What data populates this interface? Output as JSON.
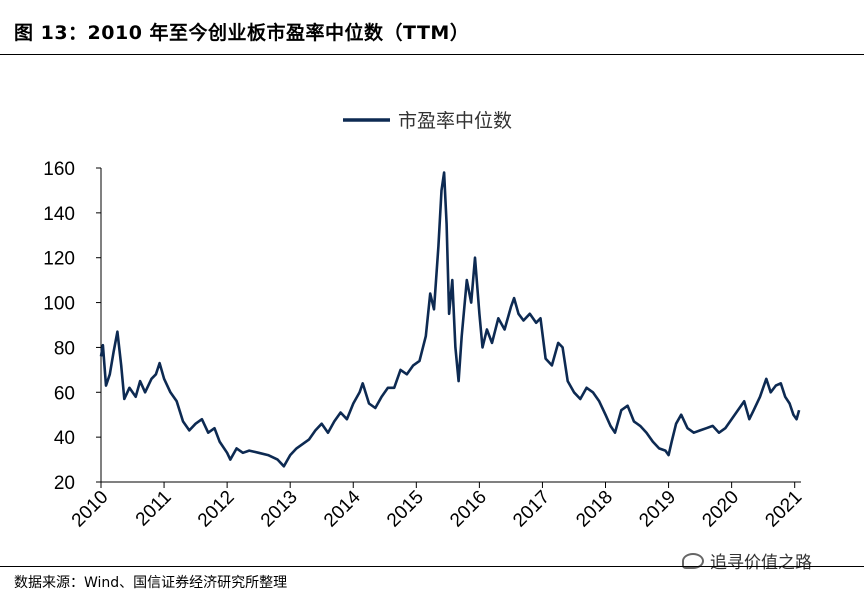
{
  "header": {
    "title": "图 13：2010 年至今创业板市盈率中位数（TTM）"
  },
  "footer": {
    "source": "数据来源：Wind、国信证券经济研究所整理"
  },
  "watermark": {
    "text": "追寻价值之路"
  },
  "colors": {
    "line": "#0d2a52",
    "axis": "#000000"
  },
  "chart_data": {
    "type": "line",
    "title": "",
    "legend": {
      "position": "top-center"
    },
    "x_ticks": [
      "2010",
      "2011",
      "2012",
      "2013",
      "2014",
      "2015",
      "2016",
      "2017",
      "2018",
      "2019",
      "2020",
      "2021"
    ],
    "y_ticks": [
      "20",
      "40",
      "60",
      "80",
      "100",
      "120",
      "140",
      "160"
    ],
    "ylim": [
      20,
      160
    ],
    "xlim": [
      2010.0,
      2021.1
    ],
    "grid": false,
    "series": [
      {
        "name": "市盈率中位数",
        "points": [
          [
            2010.0,
            76
          ],
          [
            2010.03,
            81
          ],
          [
            2010.08,
            63
          ],
          [
            2010.14,
            68
          ],
          [
            2010.2,
            78
          ],
          [
            2010.26,
            87
          ],
          [
            2010.32,
            72
          ],
          [
            2010.37,
            57
          ],
          [
            2010.45,
            62
          ],
          [
            2010.55,
            58
          ],
          [
            2010.62,
            65
          ],
          [
            2010.7,
            60
          ],
          [
            2010.8,
            66
          ],
          [
            2010.87,
            68
          ],
          [
            2010.93,
            73
          ],
          [
            2011.0,
            66
          ],
          [
            2011.1,
            60
          ],
          [
            2011.2,
            56
          ],
          [
            2011.3,
            47
          ],
          [
            2011.4,
            43
          ],
          [
            2011.5,
            46
          ],
          [
            2011.6,
            48
          ],
          [
            2011.7,
            42
          ],
          [
            2011.8,
            44
          ],
          [
            2011.88,
            38
          ],
          [
            2012.0,
            33
          ],
          [
            2012.05,
            30
          ],
          [
            2012.15,
            35
          ],
          [
            2012.25,
            33
          ],
          [
            2012.35,
            34
          ],
          [
            2012.5,
            33
          ],
          [
            2012.65,
            32
          ],
          [
            2012.8,
            30
          ],
          [
            2012.9,
            27
          ],
          [
            2013.0,
            32
          ],
          [
            2013.1,
            35
          ],
          [
            2013.2,
            37
          ],
          [
            2013.3,
            39
          ],
          [
            2013.4,
            43
          ],
          [
            2013.5,
            46
          ],
          [
            2013.6,
            42
          ],
          [
            2013.7,
            47
          ],
          [
            2013.8,
            51
          ],
          [
            2013.9,
            48
          ],
          [
            2014.0,
            55
          ],
          [
            2014.1,
            60
          ],
          [
            2014.15,
            64
          ],
          [
            2014.25,
            55
          ],
          [
            2014.35,
            53
          ],
          [
            2014.45,
            58
          ],
          [
            2014.55,
            62
          ],
          [
            2014.65,
            62
          ],
          [
            2014.75,
            70
          ],
          [
            2014.85,
            68
          ],
          [
            2014.95,
            72
          ],
          [
            2015.05,
            74
          ],
          [
            2015.15,
            85
          ],
          [
            2015.22,
            104
          ],
          [
            2015.28,
            97
          ],
          [
            2015.35,
            125
          ],
          [
            2015.4,
            150
          ],
          [
            2015.44,
            158
          ],
          [
            2015.48,
            135
          ],
          [
            2015.52,
            95
          ],
          [
            2015.57,
            110
          ],
          [
            2015.62,
            80
          ],
          [
            2015.67,
            65
          ],
          [
            2015.72,
            85
          ],
          [
            2015.8,
            110
          ],
          [
            2015.87,
            100
          ],
          [
            2015.93,
            120
          ],
          [
            2016.0,
            95
          ],
          [
            2016.05,
            80
          ],
          [
            2016.12,
            88
          ],
          [
            2016.2,
            82
          ],
          [
            2016.3,
            93
          ],
          [
            2016.4,
            88
          ],
          [
            2016.5,
            98
          ],
          [
            2016.55,
            102
          ],
          [
            2016.62,
            95
          ],
          [
            2016.7,
            92
          ],
          [
            2016.8,
            95
          ],
          [
            2016.9,
            91
          ],
          [
            2016.97,
            93
          ],
          [
            2017.05,
            75
          ],
          [
            2017.15,
            72
          ],
          [
            2017.25,
            82
          ],
          [
            2017.32,
            80
          ],
          [
            2017.4,
            65
          ],
          [
            2017.5,
            60
          ],
          [
            2017.6,
            57
          ],
          [
            2017.7,
            62
          ],
          [
            2017.8,
            60
          ],
          [
            2017.9,
            56
          ],
          [
            2018.0,
            50
          ],
          [
            2018.08,
            45
          ],
          [
            2018.15,
            42
          ],
          [
            2018.25,
            52
          ],
          [
            2018.35,
            54
          ],
          [
            2018.45,
            47
          ],
          [
            2018.55,
            45
          ],
          [
            2018.65,
            42
          ],
          [
            2018.75,
            38
          ],
          [
            2018.85,
            35
          ],
          [
            2018.95,
            34
          ],
          [
            2019.0,
            32
          ],
          [
            2019.05,
            38
          ],
          [
            2019.12,
            46
          ],
          [
            2019.2,
            50
          ],
          [
            2019.3,
            44
          ],
          [
            2019.4,
            42
          ],
          [
            2019.5,
            43
          ],
          [
            2019.6,
            44
          ],
          [
            2019.7,
            45
          ],
          [
            2019.8,
            42
          ],
          [
            2019.9,
            44
          ],
          [
            2020.0,
            48
          ],
          [
            2020.1,
            52
          ],
          [
            2020.2,
            56
          ],
          [
            2020.28,
            48
          ],
          [
            2020.35,
            52
          ],
          [
            2020.45,
            58
          ],
          [
            2020.55,
            66
          ],
          [
            2020.62,
            60
          ],
          [
            2020.7,
            63
          ],
          [
            2020.78,
            64
          ],
          [
            2020.85,
            58
          ],
          [
            2020.92,
            55
          ],
          [
            2020.98,
            50
          ],
          [
            2021.03,
            48
          ],
          [
            2021.07,
            52
          ]
        ]
      }
    ]
  }
}
